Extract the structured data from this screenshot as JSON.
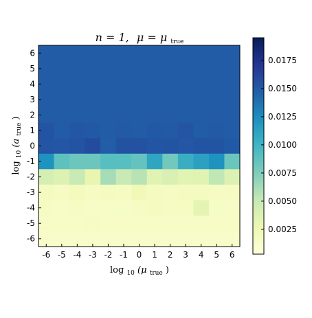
{
  "chart_data": {
    "type": "heatmap",
    "title": {
      "n_label": "n = 1,",
      "mu_symbol": "μ",
      "equals": " = ",
      "mu_true_symbol": "μ",
      "sub_true": "true"
    },
    "xlabel": {
      "prefix": "log",
      "base": "10",
      "var": "(μ",
      "sub": "true",
      "suffix": ")"
    },
    "ylabel": {
      "prefix": "log",
      "base": "10",
      "var": "(a",
      "sub": "true",
      "suffix": ")"
    },
    "x_ticks": [
      "-6",
      "-5",
      "-4",
      "-3",
      "-2",
      "-1",
      "0",
      "1",
      "2",
      "3",
      "4",
      "5",
      "6"
    ],
    "y_ticks": [
      "6",
      "5",
      "4",
      "3",
      "2",
      "1",
      "0",
      "-1",
      "-2",
      "-3",
      "-4",
      "-5",
      "-6"
    ],
    "colorbar": {
      "min": 0.0003,
      "max": 0.0195,
      "ticks": [
        0.0025,
        0.005,
        0.0075,
        0.01,
        0.0125,
        0.015,
        0.0175
      ],
      "tick_labels": [
        "0.0025",
        "0.0050",
        "0.0075",
        "0.0100",
        "0.0125",
        "0.0150",
        "0.0175"
      ],
      "colormap": "YlGnBu"
    },
    "values": [
      [
        0.0148,
        0.0148,
        0.0148,
        0.0148,
        0.0148,
        0.0148,
        0.0148,
        0.0148,
        0.0148,
        0.0148,
        0.0148,
        0.0148,
        0.0148
      ],
      [
        0.0148,
        0.0148,
        0.0148,
        0.0148,
        0.0148,
        0.0148,
        0.0148,
        0.0148,
        0.0148,
        0.0148,
        0.0148,
        0.0148,
        0.0148
      ],
      [
        0.0148,
        0.0148,
        0.0148,
        0.0148,
        0.0148,
        0.0148,
        0.0148,
        0.0148,
        0.0148,
        0.0148,
        0.0148,
        0.0148,
        0.0148
      ],
      [
        0.0148,
        0.0148,
        0.0148,
        0.0148,
        0.0148,
        0.0148,
        0.0148,
        0.0148,
        0.0148,
        0.0148,
        0.0148,
        0.0148,
        0.0148
      ],
      [
        0.0148,
        0.0148,
        0.0148,
        0.0148,
        0.0148,
        0.0148,
        0.0148,
        0.0148,
        0.0148,
        0.0148,
        0.0148,
        0.0148,
        0.0148
      ],
      [
        0.0153,
        0.0148,
        0.0151,
        0.015,
        0.0148,
        0.0149,
        0.0148,
        0.015,
        0.0149,
        0.0152,
        0.0148,
        0.0149,
        0.0148
      ],
      [
        0.0152,
        0.0151,
        0.0153,
        0.0157,
        0.0147,
        0.0154,
        0.0154,
        0.0152,
        0.0153,
        0.0151,
        0.0153,
        0.0153,
        0.015
      ],
      [
        0.0122,
        0.0088,
        0.0082,
        0.0082,
        0.009,
        0.009,
        0.0085,
        0.011,
        0.008,
        0.0104,
        0.0113,
        0.0122,
        0.0083
      ],
      [
        0.0042,
        0.0037,
        0.005,
        0.003,
        0.0062,
        0.005,
        0.0056,
        0.0035,
        0.004,
        0.0034,
        0.0035,
        0.0053,
        0.0038
      ],
      [
        0.0018,
        0.0017,
        0.0019,
        0.0017,
        0.0018,
        0.0017,
        0.0022,
        0.0018,
        0.0017,
        0.0018,
        0.0018,
        0.0017,
        0.0017
      ],
      [
        0.0016,
        0.0015,
        0.0016,
        0.0015,
        0.0015,
        0.0015,
        0.0016,
        0.0018,
        0.0016,
        0.0016,
        0.0033,
        0.0015,
        0.0015
      ],
      [
        0.0014,
        0.0014,
        0.0015,
        0.0017,
        0.0014,
        0.0014,
        0.0014,
        0.0014,
        0.0014,
        0.0014,
        0.0014,
        0.0014,
        0.0014
      ],
      [
        0.0013,
        0.0013,
        0.0013,
        0.0013,
        0.0013,
        0.0013,
        0.0013,
        0.0013,
        0.0013,
        0.0013,
        0.0013,
        0.0013,
        0.0013
      ]
    ]
  }
}
